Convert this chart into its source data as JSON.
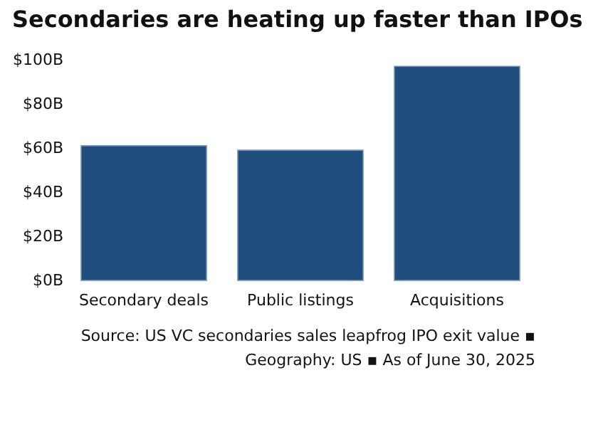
{
  "chart_data": {
    "type": "bar",
    "title": "Secondaries are heating up faster than IPOs",
    "categories": [
      "Secondary deals",
      "Public listings",
      "Acquisitions"
    ],
    "values": [
      61,
      59,
      97
    ],
    "color": "#1f4e7e",
    "ylim": [
      0,
      100
    ],
    "yticks": [
      {
        "value": 0,
        "label": "$0B"
      },
      {
        "value": 20,
        "label": "$20B"
      },
      {
        "value": 40,
        "label": "$40B"
      },
      {
        "value": 60,
        "label": "$60B"
      },
      {
        "value": 80,
        "label": "$80B"
      },
      {
        "value": 100,
        "label": "$100B"
      }
    ],
    "grid": false,
    "annotations": [
      "Source: US VC secondaries sales leapfrog IPO exit value ▪",
      "Geography: US ▪ As of June 30, 2025"
    ]
  }
}
